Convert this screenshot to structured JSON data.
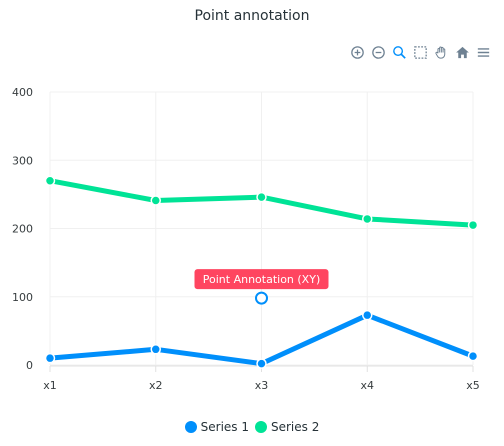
{
  "chart_data": {
    "type": "line",
    "title": "Point annotation",
    "categories": [
      "x1",
      "x2",
      "x3",
      "x4",
      "x5"
    ],
    "ylim": [
      0,
      400
    ],
    "yticks": [
      0,
      100,
      200,
      300,
      400
    ],
    "grid": true,
    "legend": "bottom",
    "series": [
      {
        "name": "Series 1",
        "color": "#008FFB",
        "values": [
          10,
          23,
          2,
          73,
          13
        ]
      },
      {
        "name": "Series 2",
        "color": "#00E396",
        "values": [
          270,
          241,
          246,
          214,
          205
        ]
      }
    ],
    "annotation": {
      "label": "Point Annotation (XY)",
      "x": "x3",
      "y": 98,
      "label_color": "#FF4560",
      "marker_color": "#008FFB"
    }
  },
  "toolbar": {
    "icons": [
      "zoom-in-icon",
      "zoom-out-icon",
      "zoom-icon",
      "selection-icon",
      "pan-icon",
      "home-icon",
      "menu-icon"
    ]
  }
}
